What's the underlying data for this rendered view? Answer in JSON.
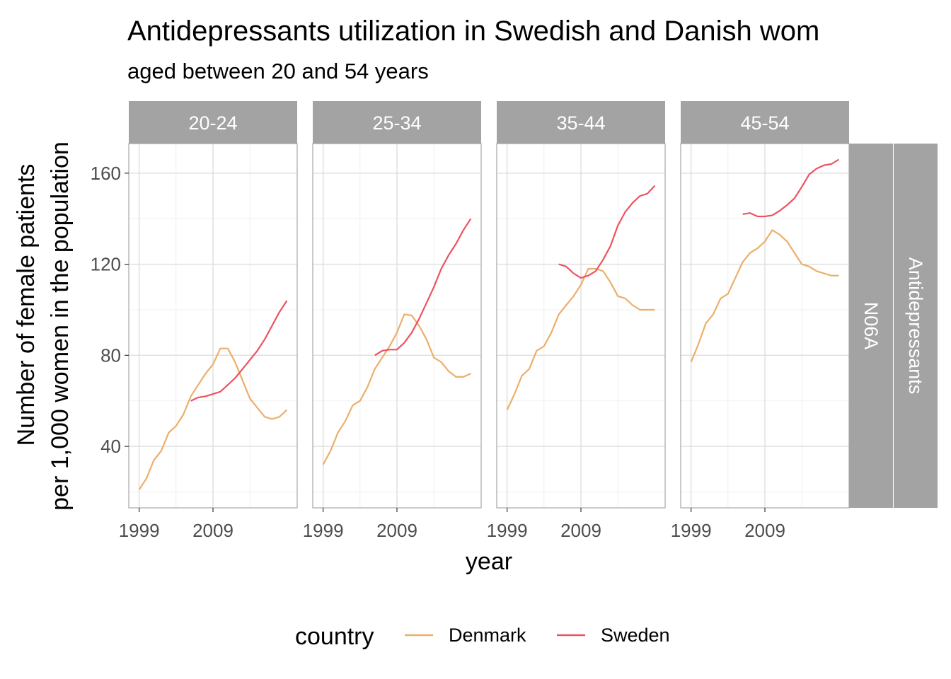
{
  "chart_data": {
    "type": "line",
    "title": "Antidepressants utilization in Swedish and Danish wom",
    "subtitle": "aged between 20 and 54 years",
    "xlabel": "year",
    "ylabel_line1": "Number of female patients",
    "ylabel_line2": "per 1,000 women in the population",
    "x_ticks": [
      "1999",
      "2009"
    ],
    "y_ticks": [
      "40",
      "80",
      "120",
      "160"
    ],
    "xlim": [
      1997.6,
      2020.4
    ],
    "ylim": [
      13,
      173
    ],
    "grid": true,
    "legend_position": "bottom",
    "legend_title": "country",
    "row_strips": [
      "N06A",
      "Antidepressants"
    ],
    "series_colors": {
      "Denmark": "#EBAF6A",
      "Sweden": "#EE5260"
    },
    "legend_items": [
      {
        "name": "Denmark",
        "color": "#EBAF6A"
      },
      {
        "name": "Sweden",
        "color": "#EE5260"
      }
    ],
    "panels": [
      {
        "label": "20-24",
        "series": [
          {
            "name": "Denmark",
            "x": [
              1999,
              2000,
              2001,
              2002,
              2003,
              2004,
              2005,
              2006,
              2007,
              2008,
              2009,
              2010,
              2011,
              2012,
              2013,
              2014,
              2015,
              2016,
              2017,
              2018,
              2019
            ],
            "values": [
              21,
              26,
              34,
              38,
              46,
              49,
              54,
              62,
              67,
              72,
              76,
              83,
              83,
              77,
              69,
              61,
              57,
              53,
              52,
              53,
              56
            ]
          },
          {
            "name": "Sweden",
            "x": [
              2006,
              2007,
              2008,
              2009,
              2010,
              2011,
              2012,
              2013,
              2014,
              2015,
              2016,
              2017,
              2018,
              2019
            ],
            "values": [
              60,
              61.5,
              62,
              63,
              64,
              67,
              70,
              74,
              78,
              82,
              87,
              93,
              99,
              104
            ]
          }
        ]
      },
      {
        "label": "25-34",
        "series": [
          {
            "name": "Denmark",
            "x": [
              1999,
              2000,
              2001,
              2002,
              2003,
              2004,
              2005,
              2006,
              2007,
              2008,
              2009,
              2010,
              2011,
              2012,
              2013,
              2014,
              2015,
              2016,
              2017,
              2018,
              2019
            ],
            "values": [
              32,
              38,
              46,
              51,
              58,
              60,
              66,
              74,
              79,
              84,
              90,
              98,
              97.5,
              93,
              87,
              79,
              77,
              73,
              70.5,
              70.5,
              72
            ]
          },
          {
            "name": "Sweden",
            "x": [
              2006,
              2007,
              2008,
              2009,
              2010,
              2011,
              2012,
              2013,
              2014,
              2015,
              2016,
              2017,
              2018,
              2019
            ],
            "values": [
              80,
              82,
              82.5,
              82.5,
              85.5,
              90,
              96,
              103,
              110,
              118,
              124,
              129,
              135,
              140
            ]
          }
        ]
      },
      {
        "label": "35-44",
        "series": [
          {
            "name": "Denmark",
            "x": [
              1999,
              2000,
              2001,
              2002,
              2003,
              2004,
              2005,
              2006,
              2007,
              2008,
              2009,
              2010,
              2011,
              2012,
              2013,
              2014,
              2015,
              2016,
              2017,
              2018,
              2019
            ],
            "values": [
              56,
              63,
              71,
              74,
              82,
              84,
              90,
              98,
              102,
              106,
              111,
              118,
              118,
              117,
              112,
              106,
              105,
              102,
              100,
              100,
              100
            ]
          },
          {
            "name": "Sweden",
            "x": [
              2006,
              2007,
              2008,
              2009,
              2010,
              2011,
              2012,
              2013,
              2014,
              2015,
              2016,
              2017,
              2018,
              2019
            ],
            "values": [
              120,
              119,
              116,
              114,
              115,
              117,
              122,
              128,
              137,
              143,
              147,
              150,
              151,
              154.5
            ]
          }
        ]
      },
      {
        "label": "45-54",
        "series": [
          {
            "name": "Denmark",
            "x": [
              1999,
              2000,
              2001,
              2002,
              2003,
              2004,
              2005,
              2006,
              2007,
              2008,
              2009,
              2010,
              2011,
              2012,
              2013,
              2014,
              2015,
              2016,
              2017,
              2018,
              2019
            ],
            "values": [
              77,
              85,
              94,
              98,
              105,
              107,
              114,
              121,
              125,
              127,
              130,
              135,
              133,
              130,
              125,
              120,
              119,
              117,
              116,
              115,
              115
            ]
          },
          {
            "name": "Sweden",
            "x": [
              2006,
              2007,
              2008,
              2009,
              2010,
              2011,
              2012,
              2013,
              2014,
              2015,
              2016,
              2017,
              2018,
              2019
            ],
            "values": [
              142,
              142.5,
              141,
              141,
              141.5,
              143.5,
              146,
              149,
              154,
              159.5,
              162,
              163.5,
              164,
              166
            ]
          }
        ]
      }
    ]
  }
}
